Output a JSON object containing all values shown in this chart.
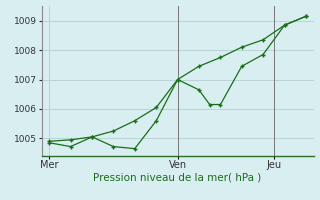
{
  "xlabel": "Pression niveau de la mer( hPa )",
  "bg_color": "#d8eef0",
  "grid_color": "#b8d4d4",
  "line_color": "#1a6e1a",
  "ylim": [
    1004.4,
    1009.5
  ],
  "yticks": [
    1005,
    1006,
    1007,
    1008,
    1009
  ],
  "xtick_labels": [
    "Mer",
    "Ven",
    "Jeu"
  ],
  "xtick_positions": [
    0.0,
    0.5,
    0.875
  ],
  "vline_x": 0.5,
  "vline2_x": 0.875,
  "line1_x": [
    0.0,
    0.083,
    0.167,
    0.25,
    0.333,
    0.417,
    0.5,
    0.583,
    0.667,
    0.75,
    0.833,
    0.917,
    1.0
  ],
  "line1_y": [
    1004.9,
    1004.95,
    1005.05,
    1005.25,
    1005.6,
    1006.05,
    1007.0,
    1007.45,
    1007.75,
    1008.1,
    1008.35,
    1008.85,
    1009.15
  ],
  "line2_x": [
    0.0,
    0.083,
    0.167,
    0.25,
    0.333,
    0.417,
    0.5,
    0.583,
    0.625,
    0.667,
    0.75,
    0.833,
    0.917,
    1.0
  ],
  "line2_y": [
    1004.85,
    1004.72,
    1005.05,
    1004.72,
    1004.65,
    1005.6,
    1007.0,
    1006.65,
    1006.15,
    1006.15,
    1007.45,
    1007.85,
    1008.85,
    1009.15
  ],
  "marker_size": 3.5
}
